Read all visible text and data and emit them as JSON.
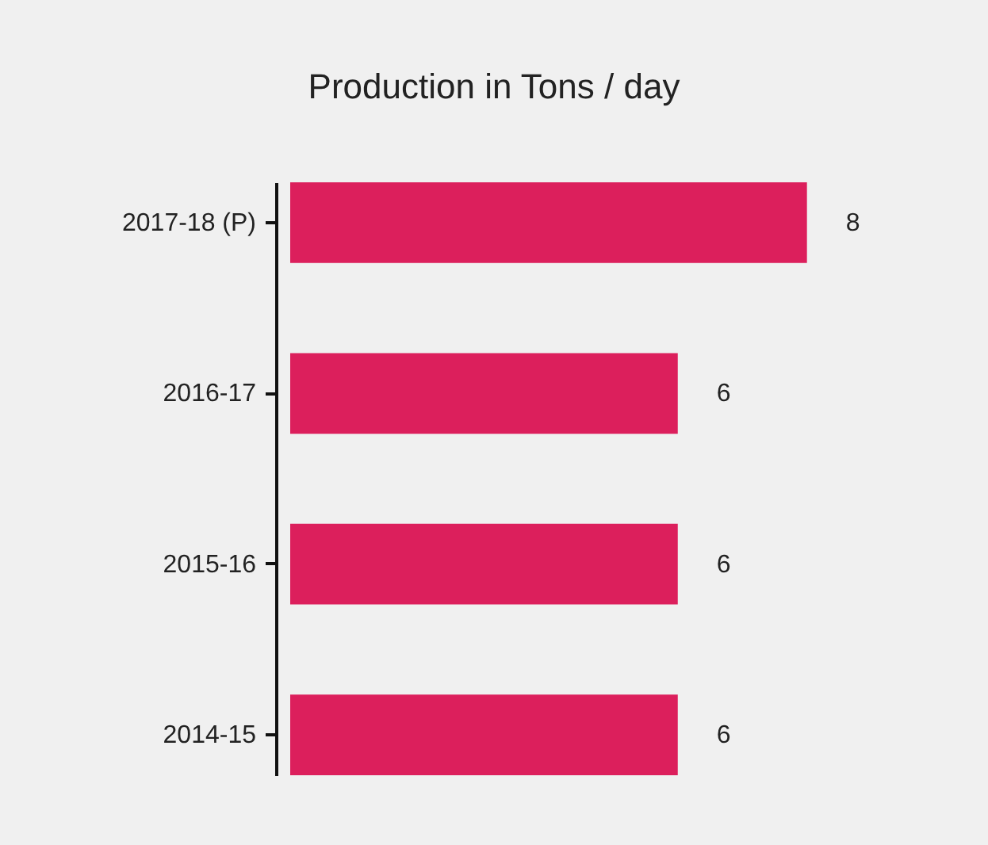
{
  "chart_data": {
    "type": "bar",
    "orientation": "horizontal",
    "title": "Production in Tons / day",
    "categories": [
      "2017-18 (P)",
      "2016-17",
      "2015-16",
      "2014-15"
    ],
    "values": [
      8,
      6,
      6,
      6
    ],
    "color": "#dc1f5c",
    "data_labels": true,
    "tick_labels": "y"
  }
}
